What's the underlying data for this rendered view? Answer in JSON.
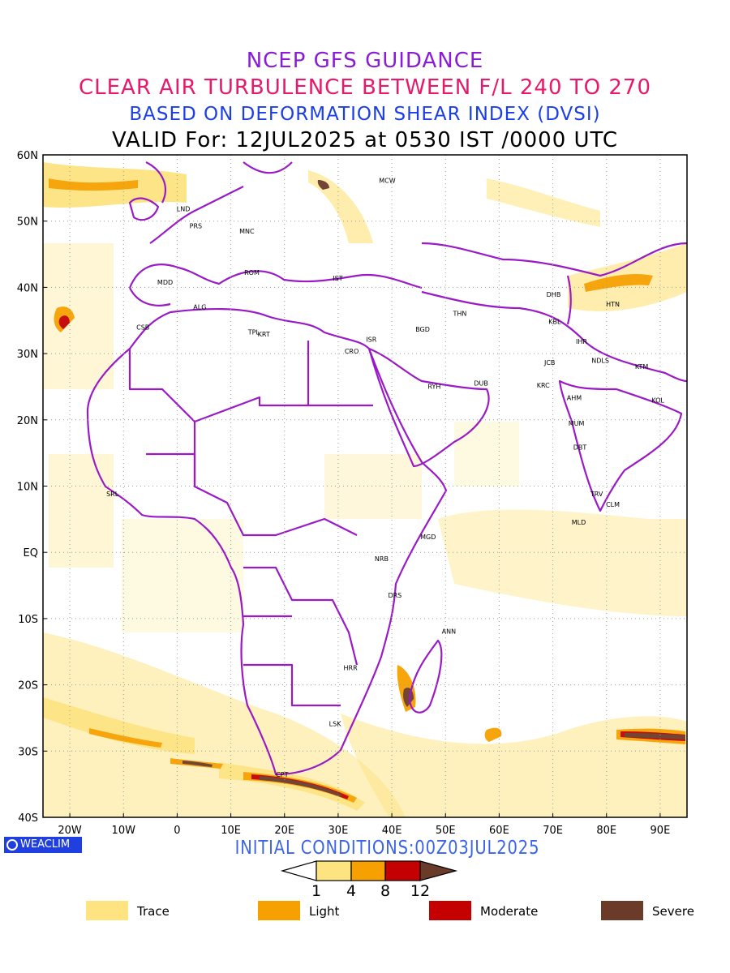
{
  "titles": {
    "line1": "NCEP GFS GUIDANCE",
    "line2": "CLEAR AIR TURBULENCE BETWEEN F/L 240 TO 270",
    "line3": "BASED ON DEFORMATION SHEAR INDEX (DVSI)",
    "line4": "VALID For: 12JUL2025 at 0530 IST /0000 UTC"
  },
  "axes": {
    "lat_labels": [
      "60N",
      "50N",
      "40N",
      "30N",
      "20N",
      "10N",
      "EQ",
      "10S",
      "20S",
      "30S",
      "40S"
    ],
    "lon_labels": [
      "20W",
      "10W",
      "0",
      "10E",
      "20E",
      "30E",
      "40E",
      "50E",
      "60E",
      "70E",
      "80E",
      "90E"
    ]
  },
  "cities": [
    {
      "code": "MCW",
      "lon": 37.6,
      "lat": 55.8
    },
    {
      "code": "LND",
      "lon": -0.1,
      "lat": 51.5
    },
    {
      "code": "PRS",
      "lon": 2.3,
      "lat": 48.9
    },
    {
      "code": "MNC",
      "lon": 11.6,
      "lat": 48.1
    },
    {
      "code": "ROM",
      "lon": 12.5,
      "lat": 41.9
    },
    {
      "code": "IST",
      "lon": 29.0,
      "lat": 41.0
    },
    {
      "code": "MDD",
      "lon": -3.7,
      "lat": 40.4
    },
    {
      "code": "ALG",
      "lon": 3.0,
      "lat": 36.7
    },
    {
      "code": "CSB",
      "lon": -7.6,
      "lat": 33.6
    },
    {
      "code": "TPL",
      "lon": 13.2,
      "lat": 32.9
    },
    {
      "code": "KRT",
      "lon": 15.0,
      "lat": 32.6
    },
    {
      "code": "ISR",
      "lon": 35.2,
      "lat": 31.8
    },
    {
      "code": "CRO",
      "lon": 31.2,
      "lat": 30.0
    },
    {
      "code": "BGD",
      "lon": 44.4,
      "lat": 33.3
    },
    {
      "code": "THN",
      "lon": 51.4,
      "lat": 35.7
    },
    {
      "code": "DHB",
      "lon": 68.8,
      "lat": 38.6
    },
    {
      "code": "HTN",
      "lon": 79.9,
      "lat": 37.1
    },
    {
      "code": "KBL",
      "lon": 69.2,
      "lat": 34.5
    },
    {
      "code": "IHR",
      "lon": 74.3,
      "lat": 31.5
    },
    {
      "code": "JCB",
      "lon": 68.4,
      "lat": 28.3
    },
    {
      "code": "NDLS",
      "lon": 77.2,
      "lat": 28.6
    },
    {
      "code": "KTM",
      "lon": 85.3,
      "lat": 27.7
    },
    {
      "code": "RYH",
      "lon": 46.7,
      "lat": 24.7
    },
    {
      "code": "DUB",
      "lon": 55.3,
      "lat": 25.2
    },
    {
      "code": "KRC",
      "lon": 67.0,
      "lat": 24.9
    },
    {
      "code": "AHM",
      "lon": 72.6,
      "lat": 23.0
    },
    {
      "code": "KOL",
      "lon": 88.4,
      "lat": 22.6
    },
    {
      "code": "MUM",
      "lon": 72.9,
      "lat": 19.1
    },
    {
      "code": "DBT",
      "lon": 73.8,
      "lat": 15.5
    },
    {
      "code": "TRV",
      "lon": 77.0,
      "lat": 8.5
    },
    {
      "code": "CLM",
      "lon": 79.9,
      "lat": 6.9
    },
    {
      "code": "MLD",
      "lon": 73.5,
      "lat": 4.2
    },
    {
      "code": "SRL",
      "lon": -13.2,
      "lat": 8.5
    },
    {
      "code": "MGD",
      "lon": 45.3,
      "lat": 2.0
    },
    {
      "code": "NRB",
      "lon": 36.8,
      "lat": -1.3
    },
    {
      "code": "DRS",
      "lon": 39.3,
      "lat": -6.8
    },
    {
      "code": "ANN",
      "lon": 49.3,
      "lat": -12.3
    },
    {
      "code": "HRR",
      "lon": 31.0,
      "lat": -17.8
    },
    {
      "code": "LSK",
      "lon": 28.3,
      "lat": -26.2
    },
    {
      "code": "CPT",
      "lon": 18.4,
      "lat": -33.9
    }
  ],
  "logo": {
    "text": "WEACLIM"
  },
  "initial_conditions": "INITIAL CONDITIONS:00Z03JUL2025",
  "colorbar": {
    "ticks": [
      "1",
      "4",
      "8",
      "12"
    ],
    "colors": [
      "#fde481",
      "#f7a100",
      "#c50000",
      "#6b3b2a"
    ]
  },
  "legend": [
    {
      "label": "Trace",
      "color": "#fde481"
    },
    {
      "label": "Light",
      "color": "#f7a100"
    },
    {
      "label": "Moderate",
      "color": "#c50000"
    },
    {
      "label": "Severe",
      "color": "#6b3b2a"
    }
  ]
}
